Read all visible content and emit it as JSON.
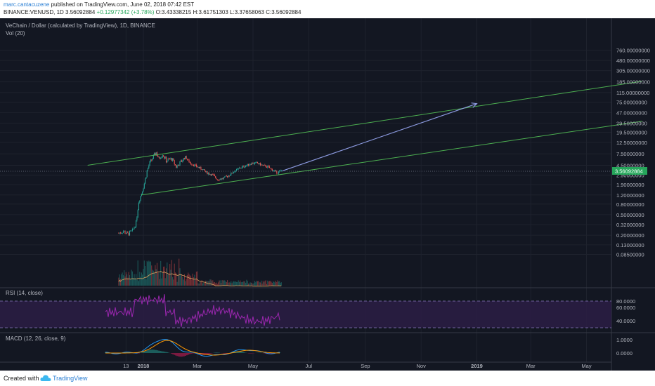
{
  "header": {
    "author": "marc.cantacuzene",
    "published": " published on TradingView.com, June 02, 2018 07:42 EST",
    "symbol": "BINANCE:VENUSD, 1D",
    "last": "3.56092884",
    "change": "+0.12977342 (+3.78%)",
    "ohlc": "O:3.43338215 H:3.61751303 L:3.37658063 C:3.56092884"
  },
  "chart_title": "VeChain / Dollar (calculated by TradingView), 1D, BINANCE",
  "vol_label": "Vol (20)",
  "rsi_label": "RSI (14, close)",
  "macd_label": "MACD (12, 26, close, 9)",
  "price_tag": "3.56092884",
  "footer": {
    "created": "Created with",
    "brand": "TradingView"
  },
  "colors": {
    "background": "#131722",
    "up": "#26a69a",
    "down": "#ef5350",
    "channel": "#4caf50",
    "arrow": "#8c9ae0",
    "rsi": "#9c27b0",
    "macd": "#2196f3",
    "signal": "#ff9800"
  },
  "chart_data": {
    "type": "candlestick",
    "scale": "log",
    "price_ticks": [
      "760.00000000",
      "480.00000000",
      "305.00000000",
      "185.00000000",
      "115.00000000",
      "75.00000000",
      "47.00000000",
      "29.50000000",
      "19.50000000",
      "12.50000000",
      "7.50000000",
      "4.50000000",
      "2.90000000",
      "1.90000000",
      "1.20000000",
      "0.80000000",
      "0.50000000",
      "0.32000000",
      "0.20000000",
      "0.13000000",
      "0.08500000"
    ],
    "x_ticks": [
      "13",
      "2018",
      "Mar",
      "May",
      "Jul",
      "Sep",
      "Nov",
      "2019",
      "Mar",
      "May"
    ],
    "rsi_ticks": [
      "80.0000",
      "60.0000",
      "40.0000"
    ],
    "macd_ticks": [
      "1.0000",
      "0.0000"
    ],
    "price_path": [
      [
        "2017-12-05",
        0.22
      ],
      [
        "2017-12-10",
        0.24
      ],
      [
        "2017-12-15",
        0.21
      ],
      [
        "2017-12-20",
        0.24
      ],
      [
        "2017-12-24",
        0.35
      ],
      [
        "2017-12-27",
        0.9
      ],
      [
        "2017-12-30",
        1.3
      ],
      [
        "2018-01-02",
        2.0
      ],
      [
        "2018-01-05",
        3.5
      ],
      [
        "2018-01-08",
        5.0
      ],
      [
        "2018-01-12",
        6.5
      ],
      [
        "2018-01-15",
        8.0
      ],
      [
        "2018-01-18",
        6.0
      ],
      [
        "2018-01-22",
        7.5
      ],
      [
        "2018-01-26",
        5.5
      ],
      [
        "2018-02-01",
        6.0
      ],
      [
        "2018-02-06",
        4.2
      ],
      [
        "2018-02-11",
        5.2
      ],
      [
        "2018-02-16",
        6.5
      ],
      [
        "2018-02-21",
        5.0
      ],
      [
        "2018-02-28",
        4.3
      ],
      [
        "2018-03-06",
        3.8
      ],
      [
        "2018-03-12",
        3.2
      ],
      [
        "2018-03-18",
        2.9
      ],
      [
        "2018-03-23",
        2.4
      ],
      [
        "2018-03-29",
        2.5
      ],
      [
        "2018-04-05",
        2.9
      ],
      [
        "2018-04-11",
        3.5
      ],
      [
        "2018-04-17",
        4.0
      ],
      [
        "2018-04-23",
        4.4
      ],
      [
        "2018-04-29",
        4.9
      ],
      [
        "2018-05-05",
        5.0
      ],
      [
        "2018-05-11",
        4.5
      ],
      [
        "2018-05-17",
        4.2
      ],
      [
        "2018-05-23",
        3.6
      ],
      [
        "2018-05-28",
        3.25
      ],
      [
        "2018-06-01",
        3.56
      ]
    ],
    "channel_upper": [
      [
        "2017-11-01",
        4.5
      ],
      [
        "2019-07-01",
        190
      ]
    ],
    "channel_lower": [
      [
        "2017-12-30",
        1.2
      ],
      [
        "2019-07-01",
        32
      ]
    ],
    "projection_arrow": [
      [
        "2018-06-02",
        3.5
      ],
      [
        "2019-01-01",
        70
      ]
    ]
  }
}
